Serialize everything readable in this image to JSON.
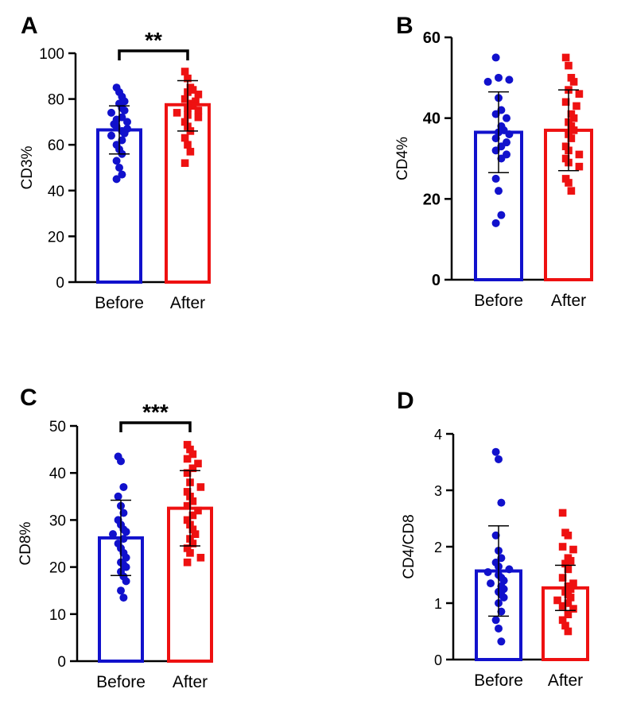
{
  "chart_data": [
    {
      "panel": "A",
      "type": "bar",
      "ylabel": "CD3%",
      "ylim": [
        0,
        100
      ],
      "yticks": [
        0,
        20,
        40,
        60,
        80,
        100
      ],
      "categories": [
        "Before",
        "After"
      ],
      "significance": "**",
      "series": [
        {
          "name": "Before",
          "color": "#1111cc",
          "marker": "circle",
          "mean": 66.5,
          "sd_low": 56,
          "sd_high": 77,
          "points": [
            85,
            83,
            81,
            79,
            78,
            76,
            75,
            74,
            72,
            71,
            70,
            69,
            68,
            67,
            66,
            65,
            64,
            62,
            60,
            58,
            56,
            53,
            50,
            47,
            45
          ]
        },
        {
          "name": "After",
          "color": "#ee1111",
          "marker": "square",
          "mean": 77.5,
          "sd_low": 66,
          "sd_high": 88,
          "points": [
            92,
            89,
            85,
            84,
            83,
            82,
            80,
            79,
            78,
            77,
            76,
            75,
            74,
            73,
            72,
            70,
            68,
            66,
            63,
            60,
            57,
            52
          ]
        }
      ]
    },
    {
      "panel": "B",
      "type": "bar",
      "ylabel": "CD4%",
      "ylim": [
        0,
        60
      ],
      "yticks": [
        0,
        20,
        40,
        60
      ],
      "categories": [
        "Before",
        "After"
      ],
      "significance": "",
      "series": [
        {
          "name": "Before",
          "color": "#1111cc",
          "marker": "circle",
          "mean": 36.5,
          "sd_low": 26.5,
          "sd_high": 46.5,
          "points": [
            55,
            50,
            49.5,
            49,
            45,
            42,
            41,
            40,
            38,
            37,
            36.5,
            36,
            35,
            34,
            33,
            32,
            31,
            30,
            25,
            22,
            16,
            14
          ]
        },
        {
          "name": "After",
          "color": "#ee1111",
          "marker": "square",
          "mean": 37,
          "sd_low": 27,
          "sd_high": 47,
          "points": [
            55,
            53,
            50,
            49,
            47,
            46,
            44,
            43,
            41,
            40,
            39,
            38,
            37,
            36,
            35,
            33,
            32,
            31,
            30,
            29,
            28,
            25,
            24,
            22
          ]
        }
      ]
    },
    {
      "panel": "C",
      "type": "bar",
      "ylabel": "CD8%",
      "ylim": [
        0,
        50
      ],
      "yticks": [
        0,
        10,
        20,
        30,
        40,
        50
      ],
      "categories": [
        "Before",
        "After"
      ],
      "significance": "***",
      "series": [
        {
          "name": "Before",
          "color": "#1111cc",
          "marker": "circle",
          "mean": 26.2,
          "sd_low": 18.2,
          "sd_high": 34.2,
          "points": [
            43.5,
            42.5,
            37,
            35,
            33,
            31.5,
            30,
            29,
            28,
            27.5,
            27,
            26,
            25,
            24,
            23,
            22,
            21,
            20.5,
            20,
            19,
            18,
            17,
            15,
            13.5
          ]
        },
        {
          "name": "After",
          "color": "#ee1111",
          "marker": "square",
          "mean": 32.5,
          "sd_low": 24.5,
          "sd_high": 40.5,
          "points": [
            46,
            45,
            44,
            43,
            42,
            41,
            40,
            38,
            37,
            36,
            35,
            34,
            33,
            32,
            31,
            30,
            29,
            28,
            27,
            26,
            25,
            24,
            23,
            22,
            21
          ]
        }
      ]
    },
    {
      "panel": "D",
      "type": "bar",
      "ylabel": "CD4/CD8",
      "ylim": [
        0,
        4
      ],
      "yticks": [
        0,
        1,
        2,
        3,
        4
      ],
      "categories": [
        "Before",
        "After"
      ],
      "significance": "",
      "series": [
        {
          "name": "Before",
          "color": "#1111cc",
          "marker": "circle",
          "mean": 1.57,
          "sd_low": 0.77,
          "sd_high": 2.37,
          "points": [
            3.68,
            3.55,
            2.78,
            2.2,
            1.93,
            1.8,
            1.72,
            1.65,
            1.6,
            1.55,
            1.5,
            1.45,
            1.4,
            1.35,
            1.3,
            1.25,
            1.2,
            1.15,
            1.1,
            1.0,
            0.85,
            0.7,
            0.55,
            0.32
          ]
        },
        {
          "name": "After",
          "color": "#ee1111",
          "marker": "square",
          "mean": 1.27,
          "sd_low": 0.87,
          "sd_high": 1.67,
          "points": [
            2.6,
            2.25,
            2.2,
            2.0,
            1.95,
            1.8,
            1.75,
            1.7,
            1.6,
            1.45,
            1.35,
            1.3,
            1.25,
            1.2,
            1.15,
            1.1,
            1.05,
            1.0,
            0.95,
            0.9,
            0.8,
            0.7,
            0.6,
            0.5
          ]
        }
      ]
    }
  ]
}
